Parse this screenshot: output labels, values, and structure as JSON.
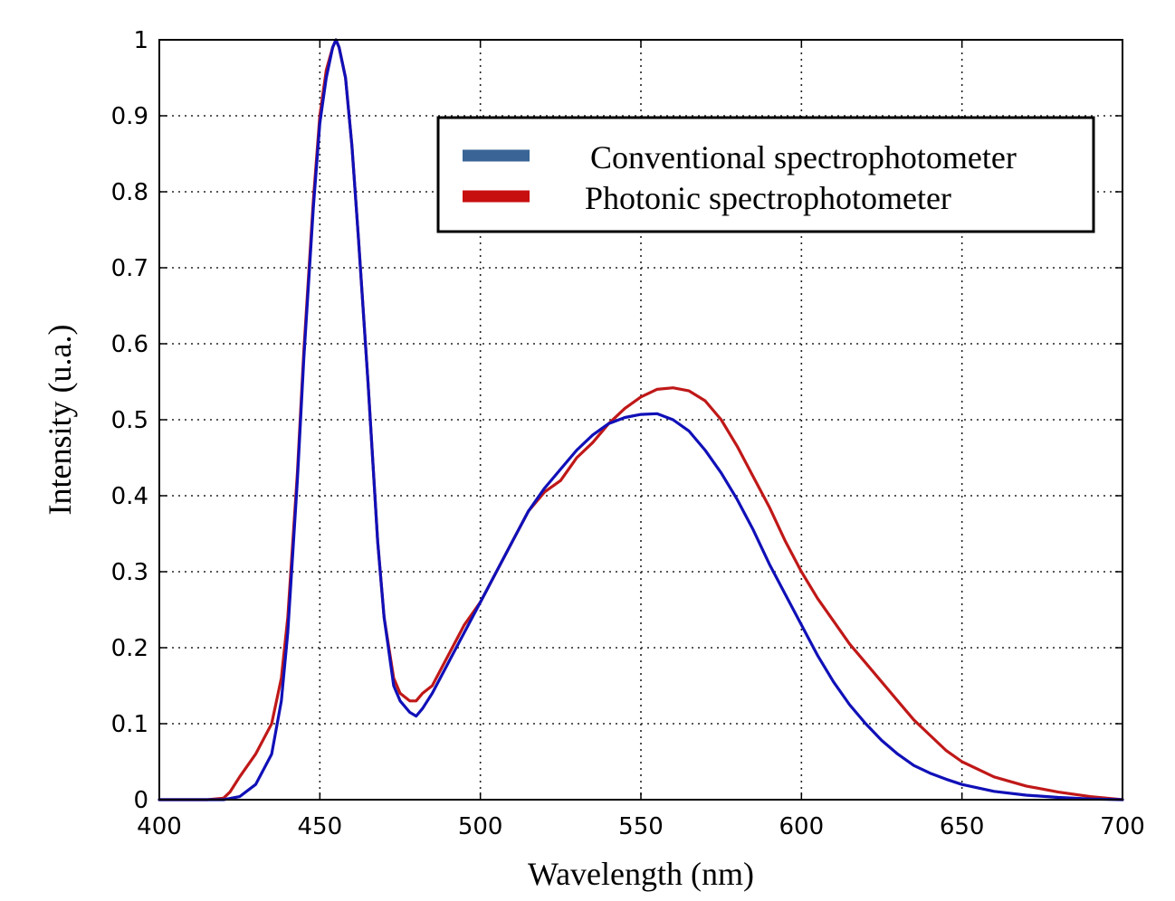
{
  "chart_data": {
    "type": "line",
    "title": "",
    "xlabel": "Wavelength (nm)",
    "ylabel": "Intensity (u.a.)",
    "xlim": [
      400,
      700
    ],
    "ylim": [
      0,
      1
    ],
    "xticks": [
      400,
      450,
      500,
      550,
      600,
      650,
      700
    ],
    "yticks": [
      0,
      0.1,
      0.2,
      0.3,
      0.4,
      0.5,
      0.6,
      0.7,
      0.8,
      0.9,
      1
    ],
    "xtick_labels": [
      "400",
      "450",
      "500",
      "550",
      "600",
      "650",
      "700"
    ],
    "ytick_labels": [
      "0",
      "0.1",
      "0.2",
      "0.3",
      "0.4",
      "0.5",
      "0.6",
      "0.7",
      "0.8",
      "0.9",
      "1"
    ],
    "grid": true,
    "legend_position": "top-right",
    "series": [
      {
        "name": "Conventional spectrophotometer",
        "legend_color": "#3a6496",
        "color": "#1010b8",
        "x": [
          400,
          415,
          420,
          425,
          430,
          435,
          438,
          440,
          443,
          445,
          448,
          450,
          452,
          454,
          455,
          456,
          458,
          460,
          462,
          465,
          468,
          470,
          473,
          475,
          478,
          480,
          482,
          485,
          490,
          495,
          500,
          505,
          510,
          515,
          520,
          525,
          530,
          535,
          540,
          545,
          550,
          555,
          560,
          565,
          570,
          575,
          580,
          585,
          590,
          595,
          600,
          605,
          610,
          615,
          620,
          625,
          630,
          635,
          640,
          645,
          650,
          660,
          670,
          680,
          690,
          700
        ],
        "y": [
          0,
          0,
          0,
          0.004,
          0.02,
          0.06,
          0.13,
          0.22,
          0.42,
          0.58,
          0.78,
          0.89,
          0.95,
          0.99,
          1.0,
          0.99,
          0.95,
          0.86,
          0.74,
          0.55,
          0.34,
          0.24,
          0.15,
          0.13,
          0.115,
          0.11,
          0.12,
          0.14,
          0.18,
          0.22,
          0.26,
          0.3,
          0.34,
          0.38,
          0.41,
          0.435,
          0.46,
          0.48,
          0.495,
          0.503,
          0.507,
          0.508,
          0.5,
          0.485,
          0.46,
          0.43,
          0.395,
          0.355,
          0.31,
          0.27,
          0.23,
          0.19,
          0.155,
          0.125,
          0.1,
          0.078,
          0.06,
          0.045,
          0.035,
          0.027,
          0.02,
          0.011,
          0.006,
          0.003,
          0.001,
          0
        ]
      },
      {
        "name": "Photonic spectrophotometer",
        "legend_color": "#c80f0f",
        "color": "#c01818",
        "x": [
          400,
          415,
          420,
          422,
          425,
          430,
          435,
          438,
          440,
          443,
          445,
          448,
          450,
          452,
          454,
          455,
          456,
          458,
          460,
          462,
          465,
          468,
          470,
          473,
          475,
          478,
          480,
          482,
          485,
          490,
          495,
          500,
          505,
          510,
          515,
          520,
          525,
          530,
          535,
          540,
          545,
          550,
          555,
          560,
          565,
          570,
          575,
          580,
          585,
          590,
          595,
          600,
          605,
          610,
          615,
          620,
          625,
          630,
          635,
          640,
          645,
          650,
          660,
          670,
          680,
          690,
          700
        ],
        "y": [
          0,
          0,
          0.002,
          0.01,
          0.03,
          0.06,
          0.1,
          0.16,
          0.24,
          0.43,
          0.59,
          0.79,
          0.9,
          0.96,
          0.99,
          1.0,
          0.99,
          0.95,
          0.86,
          0.74,
          0.55,
          0.34,
          0.24,
          0.16,
          0.14,
          0.13,
          0.13,
          0.14,
          0.15,
          0.19,
          0.23,
          0.26,
          0.3,
          0.34,
          0.38,
          0.405,
          0.42,
          0.45,
          0.47,
          0.495,
          0.515,
          0.53,
          0.54,
          0.542,
          0.538,
          0.525,
          0.5,
          0.465,
          0.425,
          0.385,
          0.34,
          0.3,
          0.265,
          0.235,
          0.205,
          0.18,
          0.155,
          0.13,
          0.105,
          0.085,
          0.065,
          0.05,
          0.03,
          0.018,
          0.01,
          0.004,
          0
        ]
      }
    ]
  }
}
